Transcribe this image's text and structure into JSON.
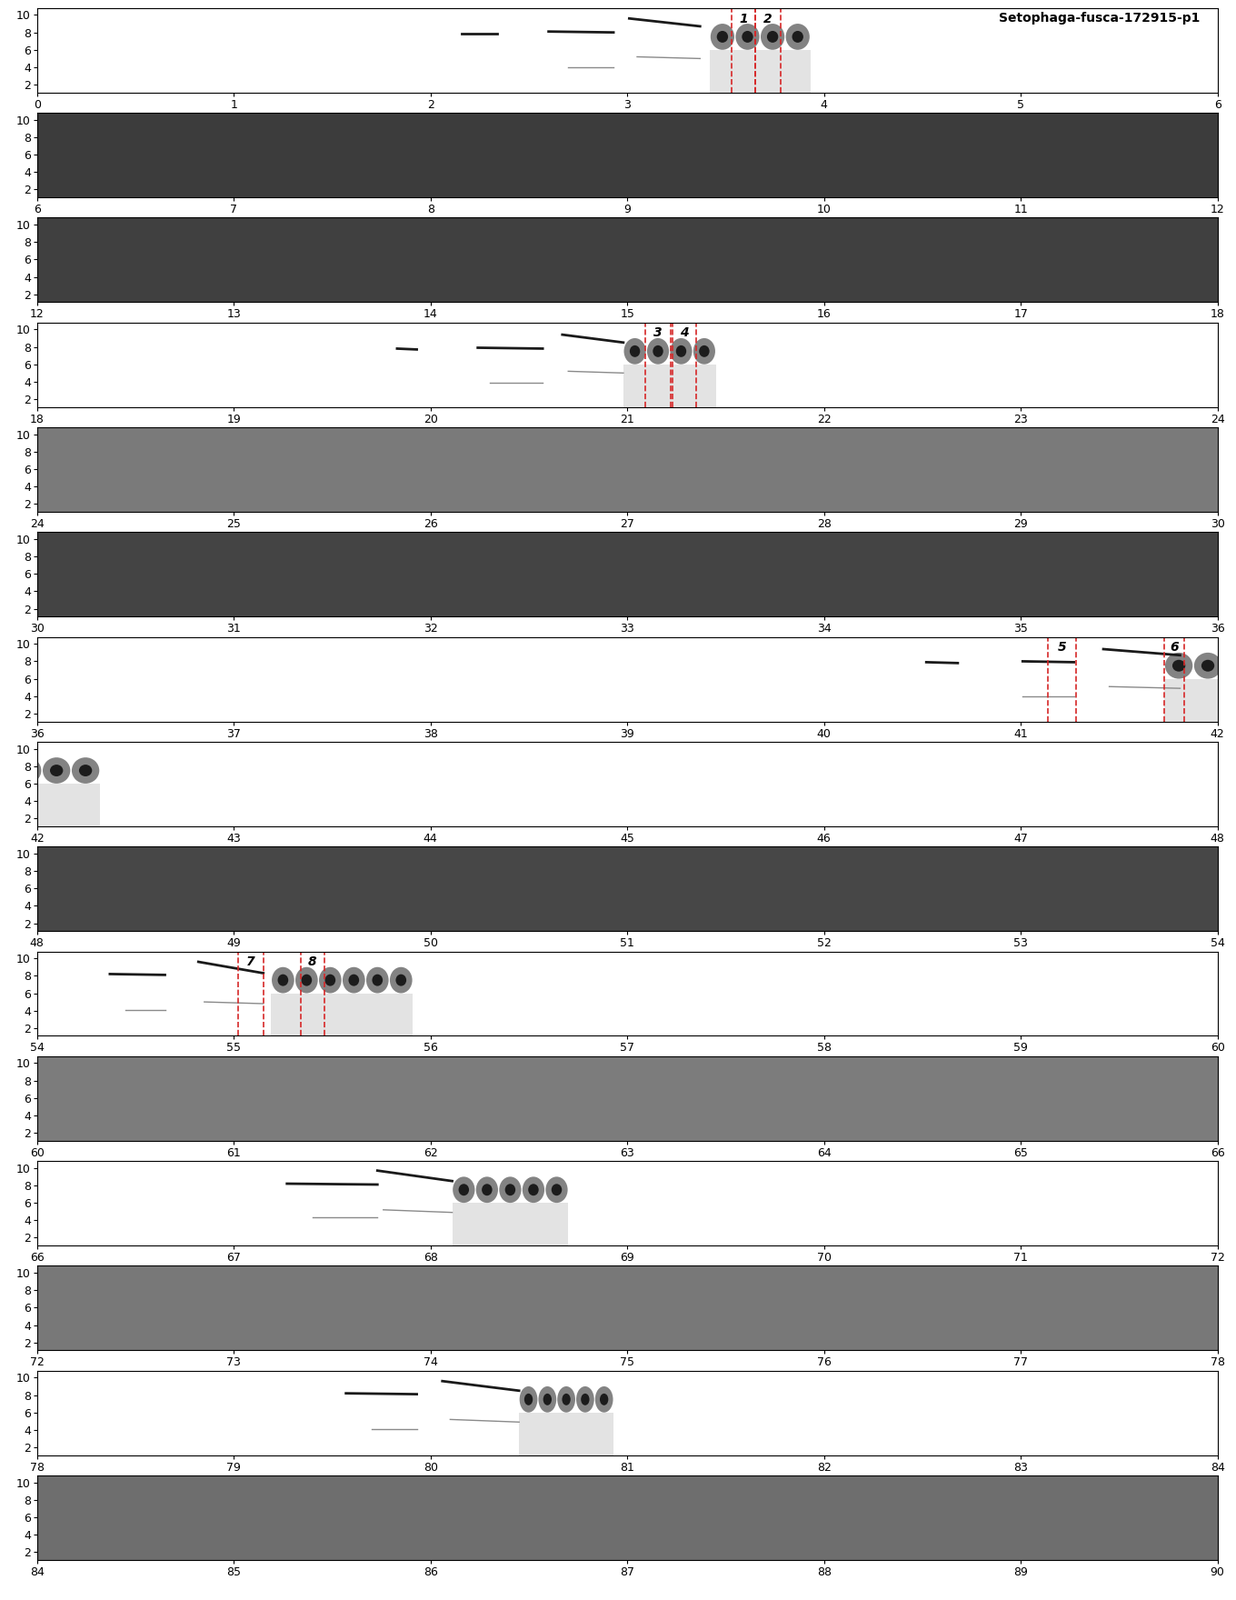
{
  "chart_data": {
    "type": "spectrogram",
    "title": "Setophaga-fusca-172915-p1",
    "ylim": [
      1.1,
      10.8
    ],
    "yticks": [
      2,
      4,
      6,
      8,
      10
    ],
    "rows": [
      {
        "xlim": [
          0,
          6
        ],
        "xticks": [
          0,
          1,
          2,
          3,
          4,
          5,
          6
        ],
        "color": "#ffffff"
      },
      {
        "xlim": [
          6,
          12
        ],
        "xticks": [
          6,
          7,
          8,
          9,
          10,
          11,
          12
        ],
        "color": "#3c3c3c"
      },
      {
        "xlim": [
          12,
          18
        ],
        "xticks": [
          12,
          13,
          14,
          15,
          16,
          17,
          18
        ],
        "color": "#404040"
      },
      {
        "xlim": [
          18,
          24
        ],
        "xticks": [
          18,
          19,
          20,
          21,
          22,
          23,
          24
        ],
        "color": "#ffffff"
      },
      {
        "xlim": [
          24,
          30
        ],
        "xticks": [
          24,
          25,
          26,
          27,
          28,
          29,
          30
        ],
        "color": "#7a7a7a"
      },
      {
        "xlim": [
          30,
          36
        ],
        "xticks": [
          30,
          31,
          32,
          33,
          34,
          35,
          36
        ],
        "color": "#444444"
      },
      {
        "xlim": [
          36,
          42
        ],
        "xticks": [
          36,
          37,
          38,
          39,
          40,
          41,
          42
        ],
        "color": "#ffffff"
      },
      {
        "xlim": [
          42,
          48
        ],
        "xticks": [
          42,
          43,
          44,
          45,
          46,
          47,
          48
        ],
        "color": "#ffffff"
      },
      {
        "xlim": [
          48,
          54
        ],
        "xticks": [
          48,
          49,
          50,
          51,
          52,
          53,
          54
        ],
        "color": "#474747"
      },
      {
        "xlim": [
          54,
          60
        ],
        "xticks": [
          54,
          55,
          56,
          57,
          58,
          59,
          60
        ],
        "color": "#ffffff"
      },
      {
        "xlim": [
          60,
          66
        ],
        "xticks": [
          60,
          61,
          62,
          63,
          64,
          65,
          66
        ],
        "color": "#7c7c7c"
      },
      {
        "xlim": [
          66,
          72
        ],
        "xticks": [
          66,
          67,
          68,
          69,
          70,
          71,
          72
        ],
        "color": "#ffffff"
      },
      {
        "xlim": [
          72,
          78
        ],
        "xticks": [
          72,
          73,
          74,
          75,
          76,
          77,
          78
        ],
        "color": "#787878"
      },
      {
        "xlim": [
          78,
          84
        ],
        "xticks": [
          78,
          79,
          80,
          81,
          82,
          83,
          84
        ],
        "color": "#ffffff"
      },
      {
        "xlim": [
          84,
          90
        ],
        "xticks": [
          84,
          85,
          86,
          87,
          88,
          89,
          90
        ],
        "color": "#6e6e6e"
      }
    ],
    "tones": [
      {
        "t0": 2.16,
        "t1": 2.34,
        "f0": 7.9,
        "f1": 7.9
      },
      {
        "t0": 2.6,
        "t1": 2.93,
        "f0": 8.1,
        "f1": 8.0
      },
      {
        "t0": 3.01,
        "t1": 3.37,
        "f0": 9.6,
        "f1": 8.7
      },
      {
        "t0": 19.83,
        "t1": 19.93,
        "f0": 7.8,
        "f1": 7.7
      },
      {
        "t0": 20.24,
        "t1": 20.57,
        "f0": 7.9,
        "f1": 7.8
      },
      {
        "t0": 20.67,
        "t1": 20.98,
        "f0": 9.4,
        "f1": 8.5
      },
      {
        "t0": 40.52,
        "t1": 40.68,
        "f0": 7.9,
        "f1": 7.8
      },
      {
        "t0": 41.01,
        "t1": 41.27,
        "f0": 8.0,
        "f1": 7.9
      },
      {
        "t0": 41.42,
        "t1": 41.81,
        "f0": 9.4,
        "f1": 8.7
      },
      {
        "t0": 54.37,
        "t1": 54.65,
        "f0": 8.2,
        "f1": 8.1
      },
      {
        "t0": 54.82,
        "t1": 55.15,
        "f0": 9.6,
        "f1": 8.3
      },
      {
        "t0": 67.27,
        "t1": 67.73,
        "f0": 8.2,
        "f1": 8.1
      },
      {
        "t0": 67.73,
        "t1": 68.11,
        "f0": 9.7,
        "f1": 8.5
      },
      {
        "t0": 79.57,
        "t1": 79.93,
        "f0": 8.2,
        "f1": 8.1
      },
      {
        "t0": 80.06,
        "t1": 80.45,
        "f0": 9.6,
        "f1": 8.5
      }
    ],
    "harmonics": [
      {
        "t0": 2.7,
        "t1": 2.93,
        "f0": 4.0,
        "f1": 4.0
      },
      {
        "t0": 3.05,
        "t1": 3.37,
        "f0": 5.2,
        "f1": 5.0
      },
      {
        "t0": 20.3,
        "t1": 20.57,
        "f0": 3.9,
        "f1": 3.9
      },
      {
        "t0": 20.7,
        "t1": 20.98,
        "f0": 5.2,
        "f1": 5.0
      },
      {
        "t0": 41.01,
        "t1": 41.27,
        "f0": 4.0,
        "f1": 4.0
      },
      {
        "t0": 41.45,
        "t1": 41.81,
        "f0": 5.1,
        "f1": 4.9
      },
      {
        "t0": 54.45,
        "t1": 54.65,
        "f0": 4.1,
        "f1": 4.1
      },
      {
        "t0": 54.85,
        "t1": 55.15,
        "f0": 5.0,
        "f1": 4.8
      },
      {
        "t0": 67.4,
        "t1": 67.73,
        "f0": 4.3,
        "f1": 4.3
      },
      {
        "t0": 67.76,
        "t1": 68.11,
        "f0": 5.2,
        "f1": 4.9
      },
      {
        "t0": 79.7,
        "t1": 79.93,
        "f0": 4.1,
        "f1": 4.1
      },
      {
        "t0": 80.1,
        "t1": 80.45,
        "f0": 5.2,
        "f1": 4.9
      }
    ],
    "trills": [
      {
        "t0": 3.42,
        "t1": 3.93,
        "f_low": 6.0,
        "f_high": 9.0,
        "notes": 4
      },
      {
        "t0": 20.98,
        "t1": 21.45,
        "f_low": 6.0,
        "f_high": 9.0,
        "notes": 4
      },
      {
        "t0": 41.73,
        "t1": 42.32,
        "f_low": 6.0,
        "f_high": 9.0,
        "notes": 4
      },
      {
        "t0": 55.19,
        "t1": 55.91,
        "f_low": 6.0,
        "f_high": 9.0,
        "notes": 6
      },
      {
        "t0": 68.11,
        "t1": 68.7,
        "f_low": 6.0,
        "f_high": 9.0,
        "notes": 5
      },
      {
        "t0": 80.45,
        "t1": 80.93,
        "f_low": 6.0,
        "f_high": 9.0,
        "notes": 5
      }
    ],
    "marks": [
      {
        "label": "1",
        "t0": 3.53,
        "t1": 3.65
      },
      {
        "label": "2",
        "t0": 3.65,
        "t1": 3.78
      },
      {
        "label": "3",
        "t0": 21.09,
        "t1": 21.22
      },
      {
        "label": "4",
        "t0": 21.23,
        "t1": 21.35
      },
      {
        "label": "5",
        "t0": 41.14,
        "t1": 41.28
      },
      {
        "label": "6",
        "t0": 41.73,
        "t1": 41.83
      },
      {
        "label": "7",
        "t0": 55.02,
        "t1": 55.15
      },
      {
        "label": "8",
        "t0": 55.34,
        "t1": 55.46
      }
    ]
  }
}
